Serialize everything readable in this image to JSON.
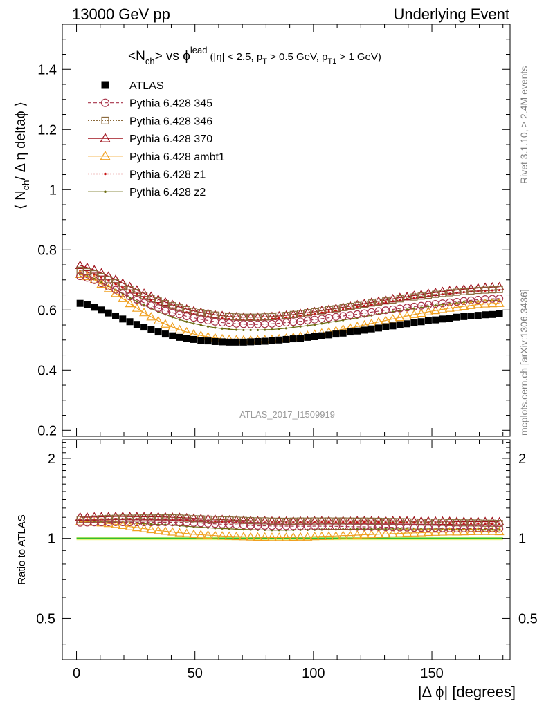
{
  "header": {
    "left": "13000 GeV pp",
    "right": "Underlying Event"
  },
  "side_labels": {
    "rivet": "Rivet 3.1.10, ≥ 2.4M events",
    "mcplots": "mcplots.cern.ch [arXiv:1306.3436]"
  },
  "plot_title": {
    "main": "<N",
    "main_sub": "ch",
    "main_mid": "> vs ϕ",
    "main_sup": "lead",
    "cuts_a": "(|η| < 2.5, p",
    "cuts_a_sub": "T",
    "cuts_b": " > 0.5 GeV, p",
    "cuts_b_sub": "T1",
    "cuts_c": " > 1 GeV)"
  },
  "y_axis_label": {
    "pre": "⟨ N",
    "sub": "ch",
    "post": "/ Δ η deltaϕ ⟩"
  },
  "ratio_axis_label": "Ratio to ATLAS",
  "x_axis_label": "|Δ ϕ| [degrees]",
  "watermark": "ATLAS_2017_I1509919",
  "colors": {
    "atlas": "#000000",
    "p345": "#a8344a",
    "p346": "#8b6a3c",
    "p370": "#a0141e",
    "ambt1": "#f0a020",
    "z1": "#c81010",
    "z2": "#6b6b10",
    "band": "#e6f57a",
    "ratio_line": "#33bb33"
  },
  "chart_data": {
    "type": "scatter",
    "xlabel": "|Δ ϕ| [degrees]",
    "ylabel": "⟨ N_ch / Δ η deltaϕ ⟩",
    "xlim": [
      -6,
      183
    ],
    "ylim": [
      0.18,
      1.55
    ],
    "ratio_ylim": [
      0.35,
      2.35
    ],
    "x_ticks": [
      0,
      50,
      100,
      150
    ],
    "y_ticks": [
      0.2,
      0.4,
      0.6,
      0.8,
      1,
      1.2,
      1.4
    ],
    "ratio_ticks": [
      0.5,
      1,
      2
    ],
    "grid": false,
    "legend_position": "top-left",
    "x": [
      1.5,
      4.5,
      7.5,
      10.5,
      13.5,
      16.5,
      19.5,
      22.5,
      25.5,
      28.5,
      31.5,
      34.5,
      37.5,
      40.5,
      43.5,
      46.5,
      49.5,
      52.5,
      55.5,
      58.5,
      61.5,
      64.5,
      67.5,
      70.5,
      73.5,
      76.5,
      79.5,
      82.5,
      85.5,
      88.5,
      91.5,
      94.5,
      97.5,
      100.5,
      103.5,
      106.5,
      109.5,
      112.5,
      115.5,
      118.5,
      121.5,
      124.5,
      127.5,
      130.5,
      133.5,
      136.5,
      139.5,
      142.5,
      145.5,
      148.5,
      151.5,
      154.5,
      157.5,
      160.5,
      163.5,
      166.5,
      169.5,
      172.5,
      175.5,
      178.5
    ],
    "series": [
      {
        "name": "ATLAS",
        "marker": "square",
        "line": "none",
        "color": "#000000",
        "values": [
          0.622,
          0.617,
          0.609,
          0.6,
          0.59,
          0.58,
          0.57,
          0.561,
          0.552,
          0.543,
          0.535,
          0.527,
          0.52,
          0.514,
          0.509,
          0.505,
          0.502,
          0.499,
          0.497,
          0.495,
          0.494,
          0.493,
          0.493,
          0.493,
          0.494,
          0.495,
          0.496,
          0.498,
          0.5,
          0.502,
          0.504,
          0.506,
          0.509,
          0.511,
          0.514,
          0.517,
          0.52,
          0.523,
          0.527,
          0.53,
          0.533,
          0.537,
          0.54,
          0.544,
          0.547,
          0.551,
          0.554,
          0.558,
          0.561,
          0.564,
          0.567,
          0.57,
          0.573,
          0.576,
          0.578,
          0.58,
          0.582,
          0.584,
          0.585,
          0.587
        ]
      },
      {
        "name": "Pythia 6.428 345",
        "marker": "circle-open",
        "line": "dashed",
        "color": "#a8344a",
        "values": [
          0.712,
          0.707,
          0.699,
          0.689,
          0.678,
          0.667,
          0.655,
          0.645,
          0.634,
          0.624,
          0.615,
          0.606,
          0.598,
          0.591,
          0.585,
          0.579,
          0.574,
          0.569,
          0.565,
          0.561,
          0.558,
          0.556,
          0.554,
          0.553,
          0.552,
          0.552,
          0.553,
          0.554,
          0.556,
          0.558,
          0.56,
          0.562,
          0.565,
          0.568,
          0.571,
          0.574,
          0.577,
          0.58,
          0.583,
          0.586,
          0.589,
          0.593,
          0.596,
          0.599,
          0.602,
          0.605,
          0.608,
          0.611,
          0.614,
          0.617,
          0.62,
          0.622,
          0.625,
          0.627,
          0.63,
          0.632,
          0.634,
          0.636,
          0.637,
          0.638
        ]
      },
      {
        "name": "Pythia 6.428 346",
        "marker": "square-open",
        "line": "dotted",
        "color": "#8b6a3c",
        "values": [
          0.732,
          0.727,
          0.72,
          0.711,
          0.701,
          0.69,
          0.679,
          0.668,
          0.658,
          0.648,
          0.638,
          0.63,
          0.621,
          0.614,
          0.607,
          0.601,
          0.595,
          0.591,
          0.587,
          0.583,
          0.58,
          0.578,
          0.577,
          0.576,
          0.576,
          0.576,
          0.577,
          0.578,
          0.58,
          0.582,
          0.585,
          0.588,
          0.591,
          0.594,
          0.597,
          0.601,
          0.604,
          0.608,
          0.612,
          0.615,
          0.619,
          0.623,
          0.626,
          0.63,
          0.633,
          0.637,
          0.64,
          0.643,
          0.646,
          0.649,
          0.652,
          0.655,
          0.657,
          0.659,
          0.661,
          0.663,
          0.665,
          0.666,
          0.667,
          0.668
        ]
      },
      {
        "name": "Pythia 6.428 370",
        "marker": "triangle-open",
        "line": "solid",
        "color": "#a0141e",
        "values": [
          0.748,
          0.741,
          0.733,
          0.723,
          0.712,
          0.701,
          0.689,
          0.677,
          0.666,
          0.655,
          0.645,
          0.635,
          0.626,
          0.617,
          0.61,
          0.603,
          0.597,
          0.592,
          0.588,
          0.584,
          0.581,
          0.578,
          0.577,
          0.576,
          0.576,
          0.576,
          0.577,
          0.578,
          0.58,
          0.582,
          0.585,
          0.588,
          0.591,
          0.594,
          0.598,
          0.602,
          0.605,
          0.609,
          0.613,
          0.617,
          0.621,
          0.625,
          0.629,
          0.633,
          0.637,
          0.641,
          0.644,
          0.648,
          0.651,
          0.655,
          0.658,
          0.661,
          0.664,
          0.666,
          0.669,
          0.671,
          0.673,
          0.675,
          0.676,
          0.677
        ]
      },
      {
        "name": "Pythia 6.428 ambt1",
        "marker": "triangle-open",
        "line": "solid",
        "color": "#f0a020",
        "values": [
          0.718,
          0.711,
          0.7,
          0.686,
          0.671,
          0.655,
          0.638,
          0.621,
          0.606,
          0.591,
          0.577,
          0.564,
          0.553,
          0.543,
          0.534,
          0.527,
          0.52,
          0.515,
          0.511,
          0.507,
          0.504,
          0.502,
          0.501,
          0.5,
          0.5,
          0.5,
          0.501,
          0.502,
          0.504,
          0.506,
          0.509,
          0.512,
          0.515,
          0.519,
          0.523,
          0.527,
          0.531,
          0.536,
          0.54,
          0.545,
          0.55,
          0.555,
          0.56,
          0.565,
          0.57,
          0.575,
          0.58,
          0.585,
          0.589,
          0.594,
          0.598,
          0.602,
          0.606,
          0.609,
          0.612,
          0.615,
          0.618,
          0.62,
          0.621,
          0.622
        ]
      },
      {
        "name": "Pythia 6.428 z1",
        "marker": "dot",
        "line": "dotted",
        "color": "#c81010",
        "values": [
          0.73,
          0.725,
          0.717,
          0.708,
          0.697,
          0.686,
          0.674,
          0.663,
          0.652,
          0.641,
          0.631,
          0.622,
          0.613,
          0.605,
          0.598,
          0.592,
          0.586,
          0.582,
          0.578,
          0.574,
          0.572,
          0.57,
          0.569,
          0.568,
          0.568,
          0.568,
          0.569,
          0.571,
          0.573,
          0.575,
          0.578,
          0.581,
          0.584,
          0.587,
          0.591,
          0.595,
          0.598,
          0.602,
          0.606,
          0.61,
          0.614,
          0.618,
          0.622,
          0.625,
          0.629,
          0.633,
          0.636,
          0.64,
          0.643,
          0.646,
          0.649,
          0.652,
          0.654,
          0.657,
          0.659,
          0.661,
          0.663,
          0.664,
          0.665,
          0.666
        ]
      },
      {
        "name": "Pythia 6.428 z2",
        "marker": "dot",
        "line": "solid",
        "color": "#6b6b10",
        "values": [
          0.718,
          0.712,
          0.703,
          0.692,
          0.68,
          0.667,
          0.654,
          0.641,
          0.628,
          0.616,
          0.605,
          0.594,
          0.585,
          0.576,
          0.568,
          0.561,
          0.555,
          0.55,
          0.545,
          0.541,
          0.538,
          0.536,
          0.534,
          0.533,
          0.533,
          0.533,
          0.534,
          0.535,
          0.537,
          0.539,
          0.542,
          0.545,
          0.548,
          0.551,
          0.555,
          0.559,
          0.562,
          0.566,
          0.57,
          0.574,
          0.578,
          0.582,
          0.586,
          0.59,
          0.594,
          0.598,
          0.601,
          0.605,
          0.608,
          0.612,
          0.615,
          0.618,
          0.62,
          0.623,
          0.625,
          0.627,
          0.629,
          0.631,
          0.632,
          0.633
        ]
      }
    ]
  }
}
